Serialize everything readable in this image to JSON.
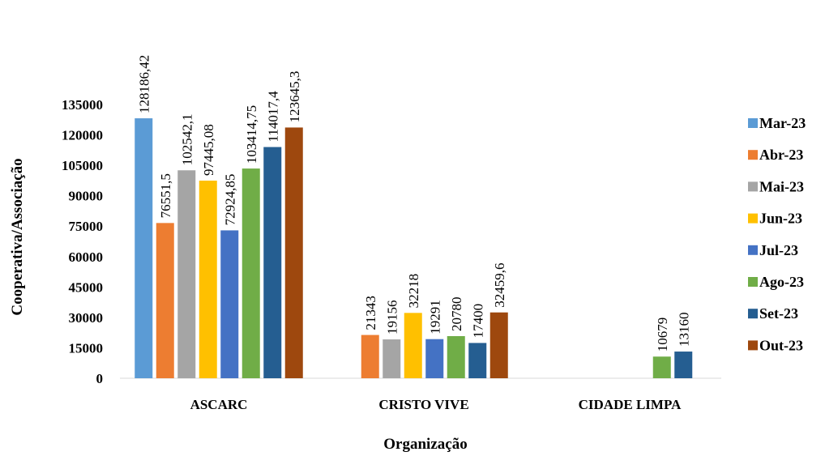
{
  "chart_data": {
    "type": "bar",
    "xlabel": "Organização",
    "ylabel": "Cooperativa/Associação",
    "ylim": [
      0,
      135000
    ],
    "yticks": [
      "0",
      "15000",
      "30000",
      "45000",
      "60000",
      "75000",
      "90000",
      "105000",
      "120000",
      "135000"
    ],
    "grid": false,
    "legend_position": "right",
    "categories": [
      "ASCARC",
      "CRISTO VIVE",
      "CIDADE LIMPA"
    ],
    "series": [
      {
        "name": "Mar-23",
        "color": "#5B9BD5",
        "values": [
          128186.42,
          null,
          null
        ],
        "labels": [
          "128186,42",
          null,
          null
        ]
      },
      {
        "name": "Abr-23",
        "color": "#ED7D31",
        "values": [
          76551.5,
          21343,
          null
        ],
        "labels": [
          "76551,5",
          "21343",
          null
        ]
      },
      {
        "name": "Mai-23",
        "color": "#A5A5A5",
        "values": [
          102542.1,
          19156,
          null
        ],
        "labels": [
          "102542,1",
          "19156",
          null
        ]
      },
      {
        "name": "Jun-23",
        "color": "#FFC000",
        "values": [
          97445.08,
          32218,
          null
        ],
        "labels": [
          "97445,08",
          "32218",
          null
        ]
      },
      {
        "name": "Jul-23",
        "color": "#4472C4",
        "values": [
          72924.85,
          19291,
          null
        ],
        "labels": [
          "72924,85",
          "19291",
          null
        ]
      },
      {
        "name": "Ago-23",
        "color": "#70AD47",
        "values": [
          103414.75,
          20780,
          10679
        ],
        "labels": [
          "103414,75",
          "20780",
          "10679"
        ]
      },
      {
        "name": "Set-23",
        "color": "#255E91",
        "values": [
          114017.4,
          17400,
          13160
        ],
        "labels": [
          "114017,4",
          "17400",
          "13160"
        ]
      },
      {
        "name": "Out-23",
        "color": "#9E480E",
        "values": [
          123645.3,
          32459.6,
          null
        ],
        "labels": [
          "123645,3",
          "32459,6",
          null
        ]
      }
    ]
  }
}
